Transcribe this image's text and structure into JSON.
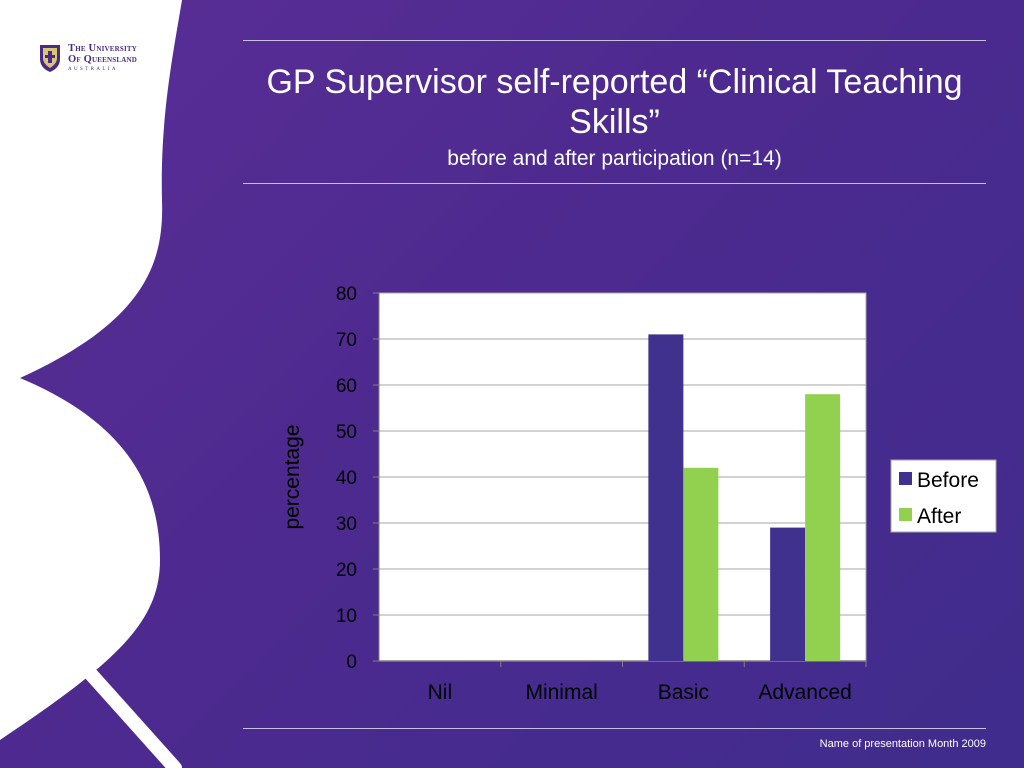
{
  "logo": {
    "line1": "The University",
    "line2": "Of Queensland",
    "line3": "AUSTRALIA"
  },
  "slide": {
    "title": "GP Supervisor self-reported “Clinical Teaching Skills”",
    "subtitle": "before and after participation (n=14)",
    "footer": "Name of presentation Month 2009"
  },
  "colors": {
    "before": "#41318f",
    "after": "#92d050"
  },
  "chart_data": {
    "type": "bar",
    "categories": [
      "Nil",
      "Minimal",
      "Basic",
      "Advanced"
    ],
    "series": [
      {
        "name": "Before",
        "values": [
          0,
          0,
          71,
          29
        ]
      },
      {
        "name": "After",
        "values": [
          0,
          0,
          42,
          58
        ]
      }
    ],
    "ylabel": "percentage",
    "ylim": [
      0,
      80
    ],
    "yticks": [
      0,
      10,
      20,
      30,
      40,
      50,
      60,
      70,
      80
    ],
    "grid": true,
    "legend": "right"
  }
}
